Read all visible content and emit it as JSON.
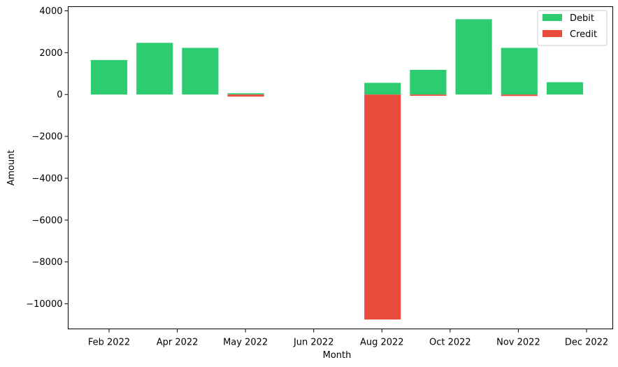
{
  "chart_data": {
    "type": "bar",
    "stacked": true,
    "xlabel": "Month",
    "ylabel": "Amount",
    "ylim": [
      -11200,
      4200
    ],
    "yticks": [
      4000,
      2000,
      0,
      -2000,
      -4000,
      -6000,
      -8000,
      -10000
    ],
    "xtick_labels": [
      "Feb 2022",
      "Apr 2022",
      "May 2022",
      "Jun 2022",
      "Aug 2022",
      "Oct 2022",
      "Nov 2022",
      "Dec 2022"
    ],
    "bar_count": 11,
    "series": [
      {
        "name": "Debit",
        "color": "#2ecc71",
        "values": [
          1650,
          2470,
          2230,
          60,
          0,
          0,
          560,
          1180,
          3600,
          2230,
          590
        ]
      },
      {
        "name": "Credit",
        "color": "#e74c3c",
        "values": [
          0,
          0,
          0,
          -100,
          0,
          0,
          -10750,
          -60,
          0,
          -70,
          0
        ]
      }
    ],
    "legend": "top-right",
    "grid": false
  }
}
